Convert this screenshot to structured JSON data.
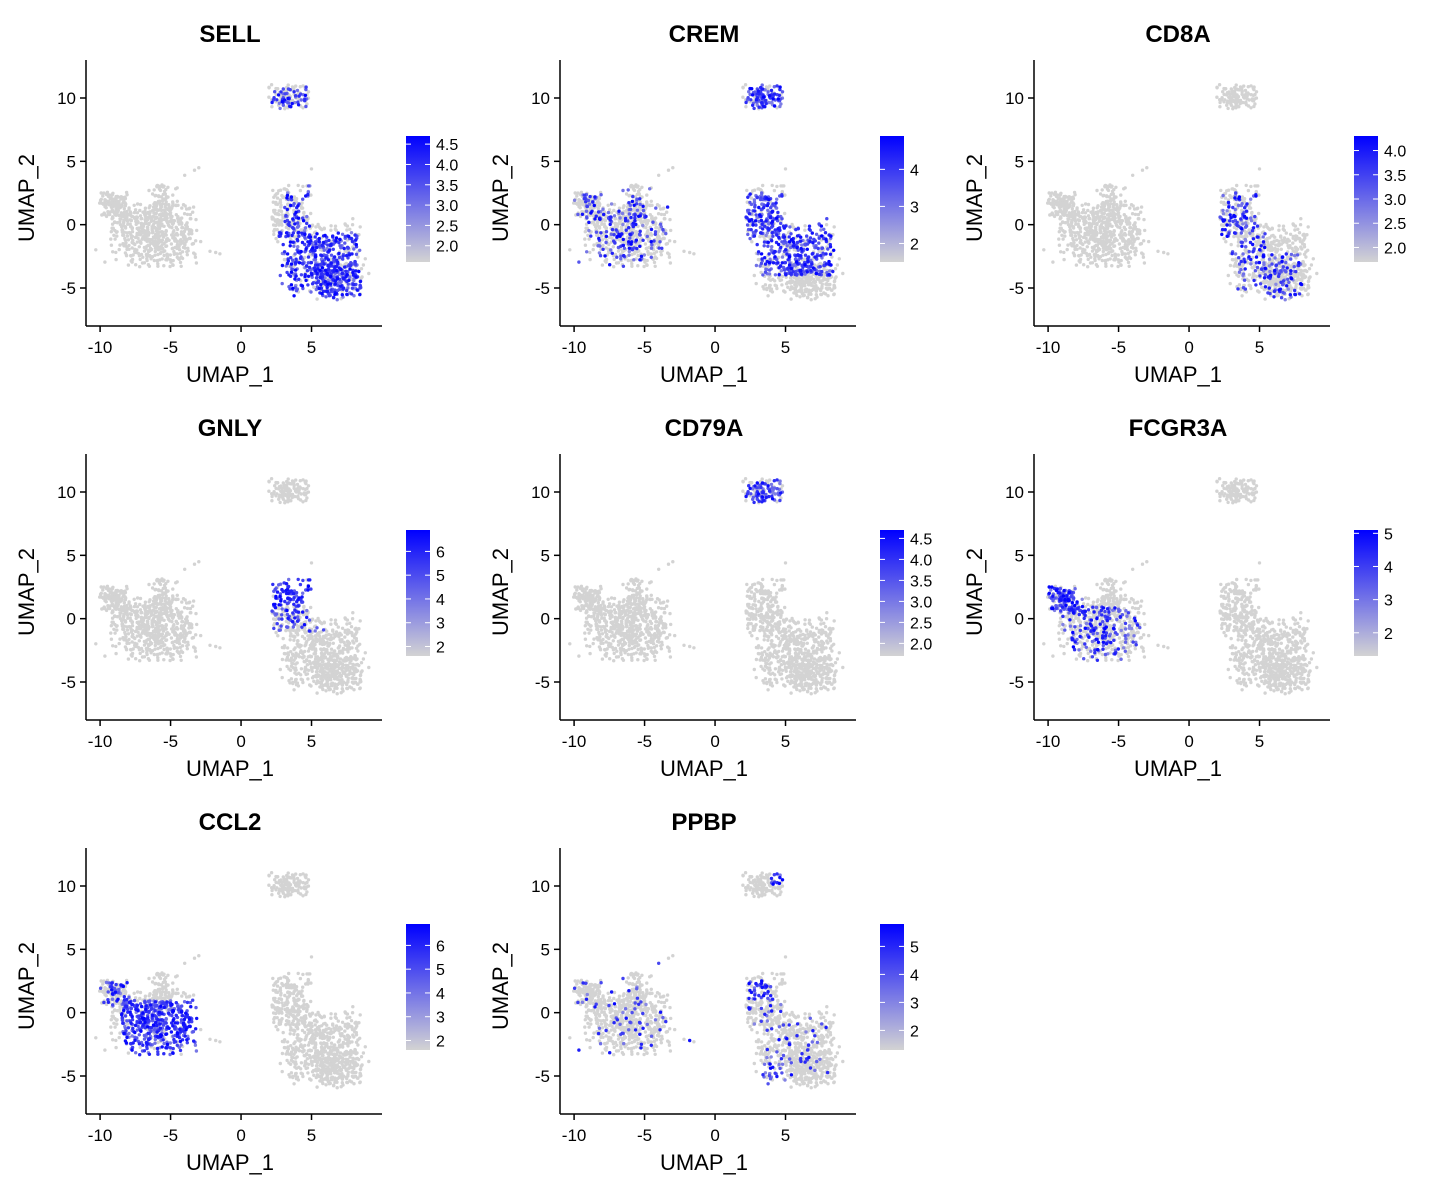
{
  "colors": {
    "low": "#d3d3d3",
    "high": "#0000ff",
    "axis": "#000000"
  },
  "chart_data": [
    {
      "type": "scatter",
      "title": "SELL",
      "xlabel": "UMAP_1",
      "ylabel": "UMAP_2",
      "xlim": [
        -11,
        10
      ],
      "ylim": [
        -8,
        13
      ],
      "xticks": [
        "-10",
        "-5",
        "0",
        "5"
      ],
      "yticks": [
        "-5",
        "0",
        "5",
        "10"
      ],
      "colorbar": {
        "min": 1.6,
        "max": 4.7,
        "ticks": [
          "2.0",
          "2.5",
          "3.0",
          "3.5",
          "4.0",
          "4.5"
        ]
      },
      "hot": [
        {
          "x": [
            2.5,
            8.5
          ],
          "y": [
            -6.5,
            -0.5
          ],
          "level": 0.8
        },
        {
          "x": [
            3,
            6
          ],
          "y": [
            -1,
            3.5
          ],
          "level": 0.4
        },
        {
          "x": [
            2,
            5
          ],
          "y": [
            9,
            11.5
          ],
          "level": 0.45
        }
      ]
    },
    {
      "type": "scatter",
      "title": "CREM",
      "xlabel": "UMAP_1",
      "ylabel": "UMAP_2",
      "xlim": [
        -11,
        10
      ],
      "ylim": [
        -8,
        13
      ],
      "xticks": [
        "-10",
        "-5",
        "0",
        "5"
      ],
      "yticks": [
        "-5",
        "0",
        "5",
        "10"
      ],
      "colorbar": {
        "min": 1.5,
        "max": 4.9,
        "ticks": [
          "2",
          "3",
          "4"
        ]
      },
      "hot": [
        {
          "x": [
            2,
            5
          ],
          "y": [
            9,
            11.5
          ],
          "level": 0.8
        },
        {
          "x": [
            2,
            8.5
          ],
          "y": [
            -4,
            2.5
          ],
          "level": 0.7
        },
        {
          "x": [
            -10,
            -3
          ],
          "y": [
            -4,
            3
          ],
          "level": 0.25
        }
      ]
    },
    {
      "type": "scatter",
      "title": "CD8A",
      "xlabel": "UMAP_1",
      "ylabel": "UMAP_2",
      "xlim": [
        -11,
        10
      ],
      "ylim": [
        -8,
        13
      ],
      "xticks": [
        "-10",
        "-5",
        "0",
        "5"
      ],
      "yticks": [
        "-5",
        "0",
        "5",
        "10"
      ],
      "colorbar": {
        "min": 1.7,
        "max": 4.3,
        "ticks": [
          "2.0",
          "2.5",
          "3.0",
          "3.5",
          "4.0"
        ]
      },
      "hot": [
        {
          "x": [
            2,
            5.5
          ],
          "y": [
            -3,
            2.5
          ],
          "level": 0.4
        },
        {
          "x": [
            3,
            8
          ],
          "y": [
            -6,
            -2
          ],
          "level": 0.25
        }
      ]
    },
    {
      "type": "scatter",
      "title": "GNLY",
      "xlabel": "UMAP_1",
      "ylabel": "UMAP_2",
      "xlim": [
        -11,
        10
      ],
      "ylim": [
        -8,
        13
      ],
      "xticks": [
        "-10",
        "-5",
        "0",
        "5"
      ],
      "yticks": [
        "-5",
        "0",
        "5",
        "10"
      ],
      "colorbar": {
        "min": 1.6,
        "max": 6.9,
        "ticks": [
          "2",
          "3",
          "4",
          "5",
          "6"
        ]
      },
      "hot": [
        {
          "x": [
            2,
            5.5
          ],
          "y": [
            1,
            4
          ],
          "level": 0.9
        },
        {
          "x": [
            2,
            6
          ],
          "y": [
            -1,
            1.5
          ],
          "level": 0.3
        }
      ]
    },
    {
      "type": "scatter",
      "title": "CD79A",
      "xlabel": "UMAP_1",
      "ylabel": "UMAP_2",
      "xlim": [
        -11,
        10
      ],
      "ylim": [
        -8,
        13
      ],
      "xticks": [
        "-10",
        "-5",
        "0",
        "5"
      ],
      "yticks": [
        "-5",
        "0",
        "5",
        "10"
      ],
      "colorbar": {
        "min": 1.7,
        "max": 4.7,
        "ticks": [
          "2.0",
          "2.5",
          "3.0",
          "3.5",
          "4.0",
          "4.5"
        ]
      },
      "hot": [
        {
          "x": [
            2,
            5
          ],
          "y": [
            8.5,
            11.5
          ],
          "level": 0.6
        }
      ]
    },
    {
      "type": "scatter",
      "title": "FCGR3A",
      "xlabel": "UMAP_1",
      "ylabel": "UMAP_2",
      "xlim": [
        -11,
        10
      ],
      "ylim": [
        -8,
        13
      ],
      "xticks": [
        "-10",
        "-5",
        "0",
        "5"
      ],
      "yticks": [
        "-5",
        "0",
        "5",
        "10"
      ],
      "colorbar": {
        "min": 1.3,
        "max": 5.1,
        "ticks": [
          "2",
          "3",
          "4",
          "5"
        ]
      },
      "hot": [
        {
          "x": [
            -10,
            -7.5
          ],
          "y": [
            0.5,
            3
          ],
          "level": 0.85
        },
        {
          "x": [
            -9,
            -3
          ],
          "y": [
            -3.5,
            1
          ],
          "level": 0.3
        }
      ]
    },
    {
      "type": "scatter",
      "title": "CCL2",
      "xlabel": "UMAP_1",
      "ylabel": "UMAP_2",
      "xlim": [
        -11,
        10
      ],
      "ylim": [
        -8,
        13
      ],
      "xticks": [
        "-10",
        "-5",
        "0",
        "5"
      ],
      "yticks": [
        "-5",
        "0",
        "5",
        "10"
      ],
      "colorbar": {
        "min": 1.6,
        "max": 6.9,
        "ticks": [
          "2",
          "3",
          "4",
          "5",
          "6"
        ]
      },
      "hot": [
        {
          "x": [
            -8.5,
            -3
          ],
          "y": [
            -3.5,
            1
          ],
          "level": 0.85
        },
        {
          "x": [
            -10,
            -7.5
          ],
          "y": [
            0.5,
            3
          ],
          "level": 0.3
        }
      ]
    },
    {
      "type": "scatter",
      "title": "PPBP",
      "xlabel": "UMAP_1",
      "ylabel": "UMAP_2",
      "xlim": [
        -11,
        10
      ],
      "ylim": [
        -8,
        13
      ],
      "xticks": [
        "-10",
        "-5",
        "0",
        "5"
      ],
      "yticks": [
        "-5",
        "0",
        "5",
        "10"
      ],
      "colorbar": {
        "min": 1.3,
        "max": 5.8,
        "ticks": [
          "2",
          "3",
          "4",
          "5"
        ]
      },
      "hot": [
        {
          "x": [
            3,
            5
          ],
          "y": [
            -6,
            -4
          ],
          "level": 0.7
        },
        {
          "x": [
            4,
            5
          ],
          "y": [
            10,
            11.5
          ],
          "level": 0.8
        },
        {
          "x": [
            2,
            4
          ],
          "y": [
            1,
            2.5
          ],
          "level": 0.5
        },
        {
          "x": [
            -10,
            8
          ],
          "y": [
            -5,
            4
          ],
          "level": 0.08
        }
      ]
    }
  ]
}
